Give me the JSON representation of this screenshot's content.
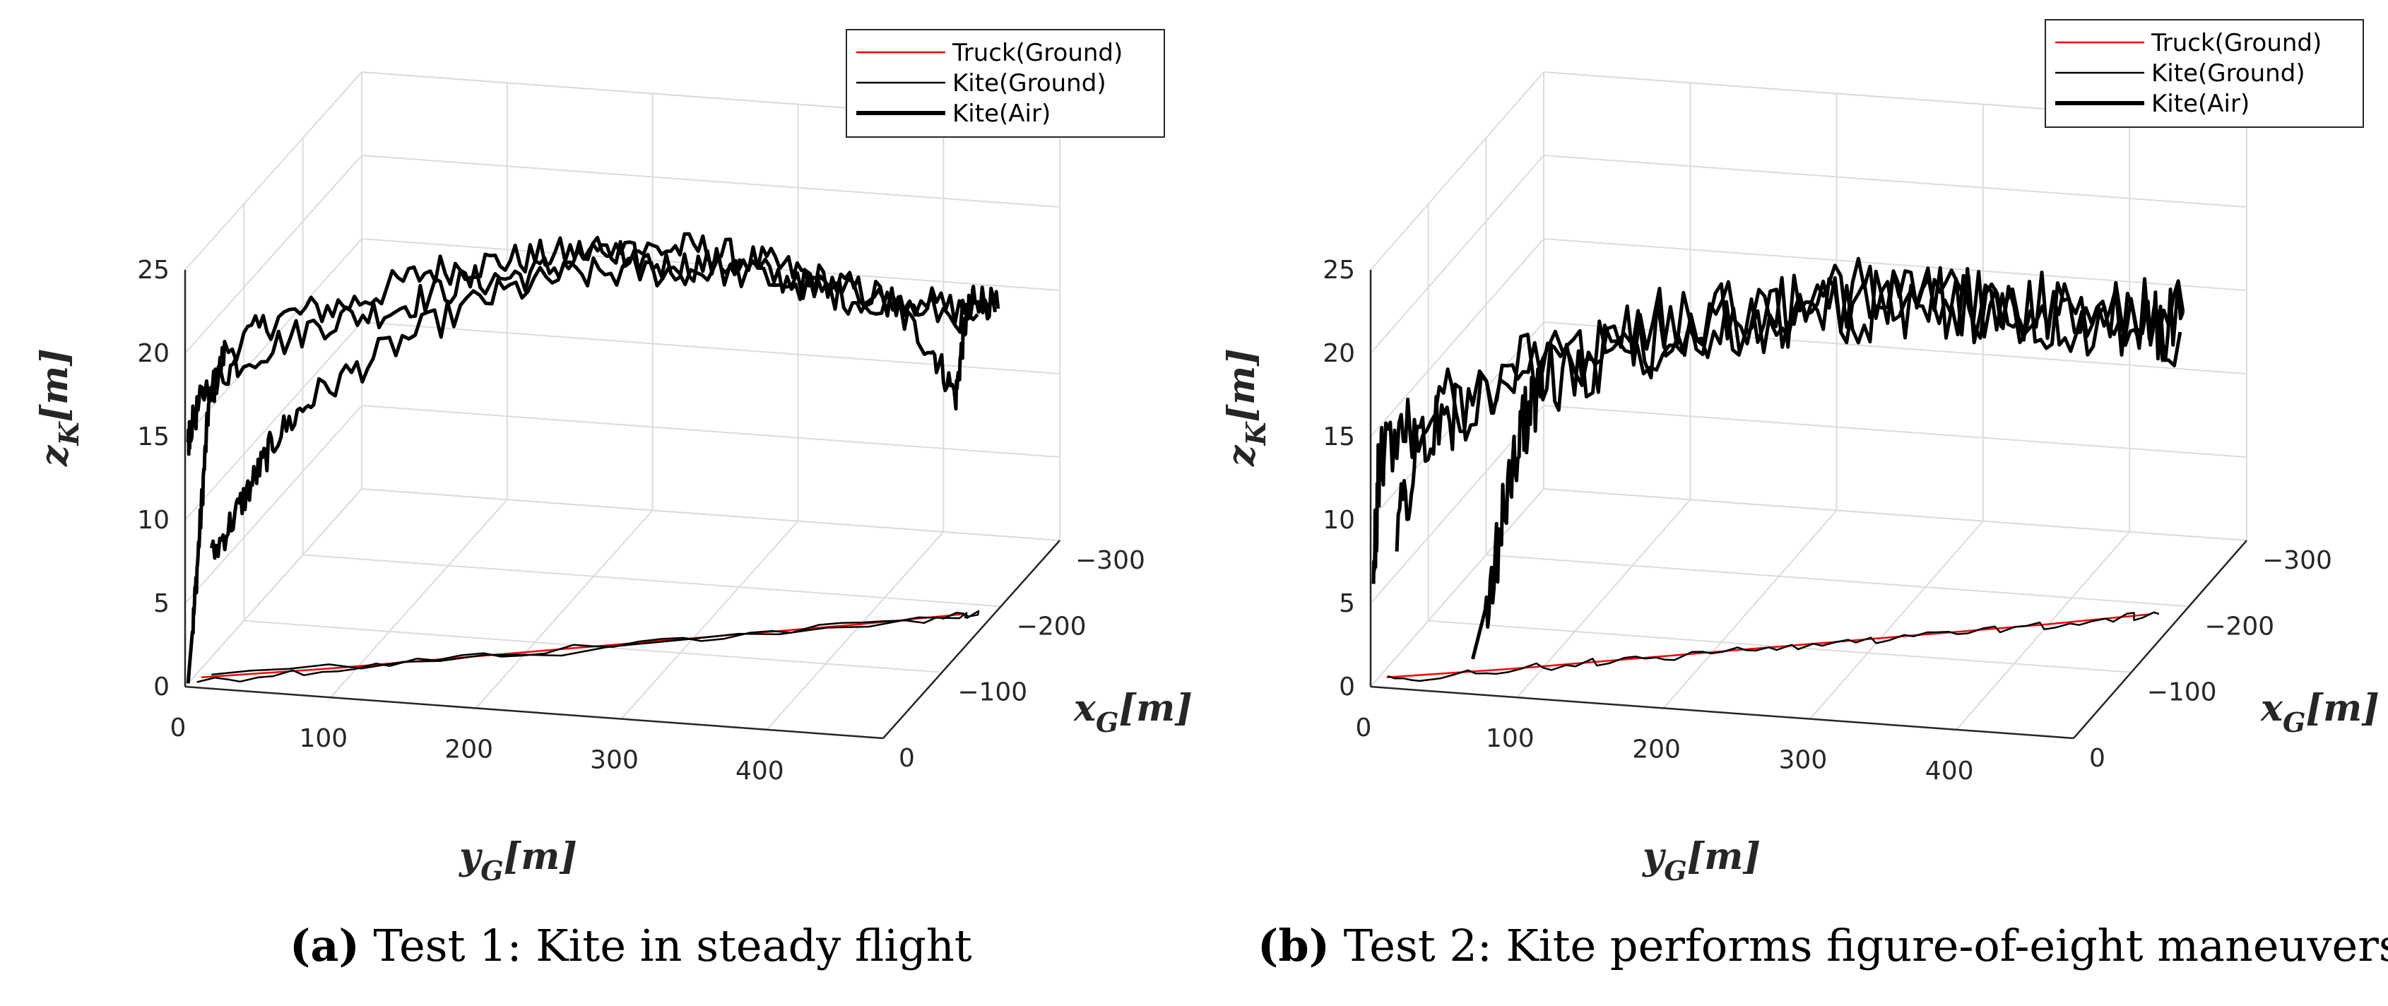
{
  "legend": {
    "entries": [
      {
        "label": "Truck(Ground)",
        "color": "#ff0000",
        "style": "thin"
      },
      {
        "label": "Kite(Ground)",
        "color": "#000000",
        "style": "thin"
      },
      {
        "label": "Kite(Air)",
        "color": "#000000",
        "style": "thick"
      }
    ]
  },
  "chart_data": [
    {
      "type": "line",
      "subtype": "3d-trajectory",
      "caption_letter": "(a)",
      "caption_text": " Test 1: Kite in steady flight",
      "zlabel": "z",
      "zlabel_sub": "K",
      "zlabel_unit": "[m]",
      "xlabel": "x",
      "xlabel_sub": "G",
      "xlabel_unit": "[m]",
      "ylabel": "y",
      "ylabel_sub": "G",
      "ylabel_unit": "[m]",
      "y_ticks": [
        "0",
        "100",
        "200",
        "300",
        "400"
      ],
      "x_ticks": [
        "0",
        "−100",
        "−200",
        "−300"
      ],
      "z_ticks": [
        "0",
        "5",
        "10",
        "15",
        "20",
        "25"
      ],
      "ylim": [
        0,
        480
      ],
      "xlim": [
        0,
        -300
      ],
      "zlim": [
        0,
        25
      ],
      "series": [
        {
          "name": "Truck(Ground)",
          "color": "#ff0000",
          "points_yxz": [
            [
              5,
              -15,
              0
            ],
            [
              80,
              -40,
              0
            ],
            [
              160,
              -70,
              0
            ],
            [
              240,
              -100,
              0
            ],
            [
              320,
              -130,
              0
            ],
            [
              400,
              -160,
              0
            ],
            [
              460,
              -185,
              0
            ]
          ]
        },
        {
          "name": "Kite(Ground)",
          "color": "#000000",
          "points_yxz": [
            [
              5,
              -10,
              0
            ],
            [
              60,
              -30,
              0
            ],
            [
              120,
              -55,
              0
            ],
            [
              200,
              -85,
              0
            ],
            [
              280,
              -115,
              0
            ],
            [
              360,
              -145,
              0
            ],
            [
              440,
              -175,
              0
            ],
            [
              470,
              -190,
              0
            ],
            [
              460,
              -180,
              0
            ],
            [
              300,
              -120,
              0
            ],
            [
              150,
              -60,
              0
            ],
            [
              10,
              -20,
              0
            ]
          ]
        },
        {
          "name": "Kite(Air) 1",
          "color": "#000000",
          "points_yxz": [
            [
              0,
              -5,
              0
            ],
            [
              2,
              -10,
              4
            ],
            [
              5,
              -15,
              10
            ],
            [
              8,
              -20,
              16
            ],
            [
              15,
              -30,
              19
            ],
            [
              40,
              -60,
              20
            ],
            [
              80,
              -90,
              20
            ],
            [
              120,
              -120,
              21
            ],
            [
              160,
              -140,
              21
            ],
            [
              200,
              -160,
              21
            ],
            [
              240,
              -170,
              21
            ],
            [
              280,
              -180,
              21
            ],
            [
              320,
              -190,
              20
            ],
            [
              360,
              -195,
              19
            ],
            [
              400,
              -200,
              18
            ],
            [
              430,
              -205,
              15
            ],
            [
              445,
              -210,
              12
            ],
            [
              450,
              -212,
              16
            ],
            [
              455,
              -215,
              18
            ],
            [
              470,
              -220,
              17
            ]
          ]
        },
        {
          "name": "Kite(Air) 2",
          "color": "#000000",
          "points_yxz": [
            [
              0,
              -5,
              14
            ],
            [
              0,
              -8,
              15
            ],
            [
              5,
              -20,
              17
            ],
            [
              20,
              -40,
              18
            ],
            [
              60,
              -80,
              19
            ],
            [
              100,
              -110,
              19
            ],
            [
              140,
              -130,
              20
            ],
            [
              180,
              -150,
              20
            ],
            [
              220,
              -165,
              21
            ],
            [
              260,
              -175,
              20
            ],
            [
              300,
              -185,
              20
            ],
            [
              340,
              -190,
              19
            ],
            [
              380,
              -195,
              18
            ],
            [
              420,
              -200,
              18
            ],
            [
              460,
              -210,
              17
            ]
          ]
        },
        {
          "name": "Kite(Air) 3",
          "color": "#000000",
          "points_yxz": [
            [
              10,
              -20,
              7
            ],
            [
              20,
              -35,
              9
            ],
            [
              30,
              -45,
              11
            ],
            [
              40,
              -55,
              13
            ],
            [
              60,
              -70,
              15
            ],
            [
              100,
              -100,
              17
            ],
            [
              150,
              -130,
              19
            ],
            [
              200,
              -150,
              20
            ],
            [
              250,
              -165,
              20
            ],
            [
              300,
              -175,
              20
            ],
            [
              350,
              -185,
              19
            ],
            [
              400,
              -195,
              18
            ],
            [
              450,
              -205,
              17
            ],
            [
              470,
              -215,
              17
            ]
          ]
        }
      ]
    },
    {
      "type": "line",
      "subtype": "3d-trajectory",
      "caption_letter": "(b)",
      "caption_text": " Test 2: Kite performs figure-of-eight maneuvers",
      "zlabel": "z",
      "zlabel_sub": "K",
      "zlabel_unit": "[m]",
      "xlabel": "x",
      "xlabel_sub": "G",
      "xlabel_unit": "[m]",
      "ylabel": "y",
      "ylabel_sub": "G",
      "ylabel_unit": "[m]",
      "y_ticks": [
        "0",
        "100",
        "200",
        "300",
        "400"
      ],
      "x_ticks": [
        "0",
        "−100",
        "−200",
        "−300"
      ],
      "z_ticks": [
        "0",
        "5",
        "10",
        "15",
        "20",
        "25"
      ],
      "ylim": [
        0,
        480
      ],
      "xlim": [
        0,
        -300
      ],
      "zlim": [
        0,
        25
      ],
      "series": [
        {
          "name": "Truck(Ground)",
          "color": "#ff0000",
          "points_yxz": [
            [
              5,
              -15,
              0
            ],
            [
              80,
              -40,
              0
            ],
            [
              160,
              -70,
              0
            ],
            [
              240,
              -100,
              0
            ],
            [
              320,
              -130,
              0
            ],
            [
              400,
              -160,
              0
            ],
            [
              460,
              -185,
              0
            ]
          ]
        },
        {
          "name": "Kite(Ground)",
          "color": "#000000",
          "points_yxz": [
            [
              5,
              -10,
              0
            ],
            [
              40,
              -25,
              0
            ],
            [
              80,
              -38,
              0
            ],
            [
              120,
              -55,
              0
            ],
            [
              160,
              -68,
              0
            ],
            [
              200,
              -85,
              0
            ],
            [
              240,
              -98,
              0
            ],
            [
              280,
              -115,
              0
            ],
            [
              320,
              -128,
              0
            ],
            [
              360,
              -145,
              0
            ],
            [
              400,
              -158,
              0
            ],
            [
              440,
              -175,
              0
            ],
            [
              465,
              -186,
              0
            ]
          ]
        },
        {
          "name": "Kite(Air) 1",
          "color": "#000000",
          "points_yxz": [
            [
              0,
              -5,
              6
            ],
            [
              2,
              -8,
              12
            ],
            [
              5,
              -10,
              14
            ],
            [
              20,
              -25,
              15
            ],
            [
              50,
              -50,
              16
            ],
            [
              100,
              -90,
              17
            ],
            [
              150,
              -120,
              18
            ],
            [
              200,
              -145,
              18
            ],
            [
              250,
              -160,
              18
            ],
            [
              300,
              -175,
              18
            ],
            [
              350,
              -185,
              18
            ],
            [
              400,
              -195,
              17
            ],
            [
              450,
              -205,
              16
            ],
            [
              470,
              -215,
              17
            ]
          ]
        },
        {
          "name": "Kite(Air) 2",
          "color": "#000000",
          "points_yxz": [
            [
              50,
              -50,
              0
            ],
            [
              60,
              -55,
              4
            ],
            [
              70,
              -60,
              10
            ],
            [
              80,
              -65,
              14
            ],
            [
              90,
              -70,
              16
            ],
            [
              120,
              -90,
              17
            ],
            [
              170,
              -120,
              18
            ],
            [
              220,
              -145,
              18
            ],
            [
              270,
              -160,
              19
            ],
            [
              320,
              -175,
              18
            ],
            [
              370,
              -185,
              18
            ],
            [
              420,
              -195,
              17
            ],
            [
              470,
              -210,
              16
            ]
          ]
        },
        {
          "name": "Kite(Air) 3",
          "color": "#000000",
          "points_yxz": [
            [
              10,
              -20,
              9
            ],
            [
              20,
              -30,
              13
            ],
            [
              40,
              -45,
              15
            ],
            [
              80,
              -70,
              16
            ],
            [
              130,
              -100,
              17
            ],
            [
              180,
              -130,
              18
            ],
            [
              230,
              -150,
              18
            ],
            [
              280,
              -165,
              18
            ],
            [
              330,
              -180,
              18
            ],
            [
              380,
              -190,
              17
            ],
            [
              430,
              -200,
              17
            ],
            [
              470,
              -215,
              17
            ]
          ]
        }
      ]
    }
  ]
}
